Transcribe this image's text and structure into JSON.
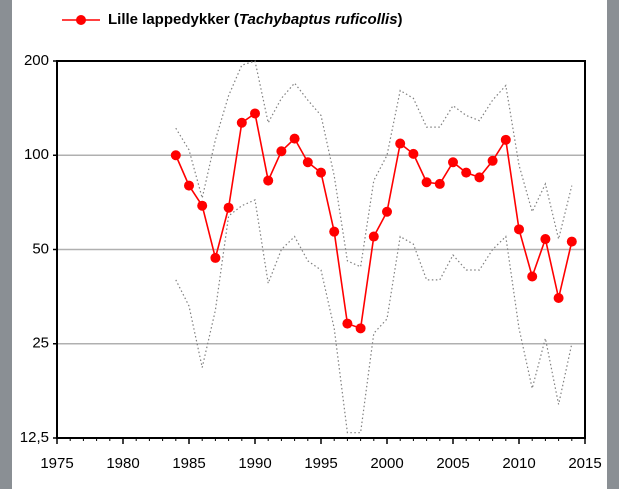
{
  "chart_data": {
    "type": "line",
    "x": [
      1984,
      1985,
      1986,
      1987,
      1988,
      1989,
      1990,
      1991,
      1992,
      1993,
      1994,
      1995,
      1996,
      1997,
      1998,
      1999,
      2000,
      2001,
      2002,
      2003,
      2004,
      2005,
      2006,
      2007,
      2008,
      2009,
      2010,
      2011,
      2012,
      2013,
      2014
    ],
    "series": [
      {
        "name": "Lille lappedykker (Tachybaptus ruficollis)",
        "color": "#ff0000",
        "style": "solid",
        "markers": true,
        "values": [
          100,
          80,
          69,
          47,
          68,
          127,
          136,
          83,
          103,
          113,
          95,
          88,
          57,
          29,
          28,
          55,
          66,
          109,
          101,
          82,
          81,
          95,
          88,
          85,
          96,
          112,
          58,
          41,
          54,
          35,
          53
        ]
      },
      {
        "color": "#808080",
        "style": "dotted",
        "markers": false,
        "values": [
          122,
          104,
          73,
          112,
          155,
          194,
          200,
          127,
          152,
          170,
          150,
          134,
          86,
          46,
          44,
          83,
          100,
          161,
          152,
          123,
          123,
          144,
          134,
          129,
          150,
          167,
          93,
          66,
          81,
          54,
          80
        ]
      },
      {
        "color": "#808080",
        "style": "dotted",
        "markers": false,
        "values": [
          40,
          33,
          21,
          32,
          64,
          69,
          72,
          39,
          50,
          55,
          46,
          43,
          28,
          13,
          13,
          27,
          30,
          55,
          52,
          40,
          40,
          48,
          43,
          43,
          50,
          55,
          28,
          18,
          26,
          16,
          25
        ]
      }
    ],
    "xlim": [
      1975,
      2015
    ],
    "xticks": [
      1975,
      1980,
      1985,
      1990,
      1995,
      2000,
      2005,
      2010,
      2015
    ],
    "ylim": [
      12.5,
      200
    ],
    "yticks": [
      {
        "value": 12.5,
        "label": "12,5"
      },
      25,
      50,
      100,
      200
    ],
    "log_scale": true,
    "grid": true,
    "legend": "top"
  }
}
